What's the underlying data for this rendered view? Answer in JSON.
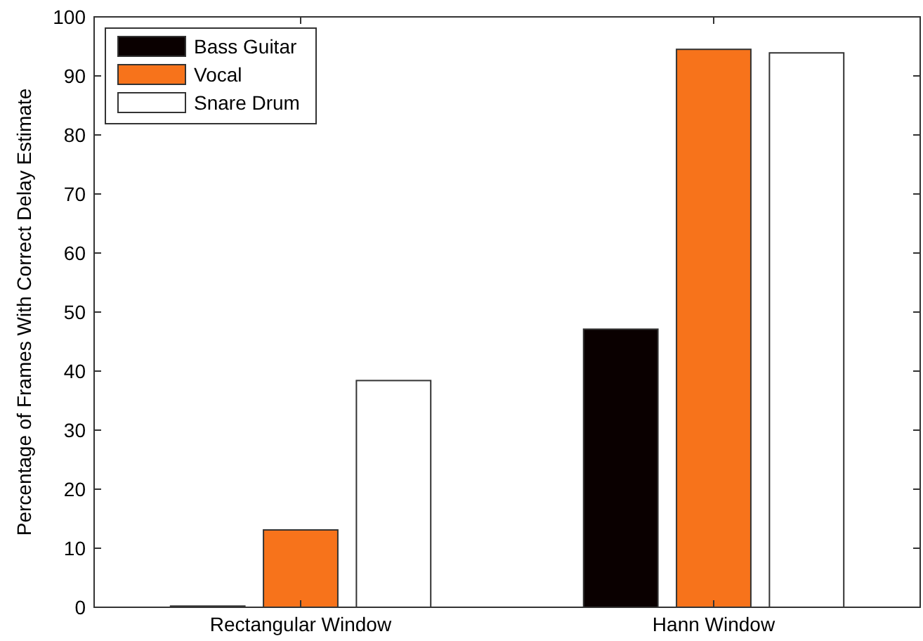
{
  "chart_data": {
    "type": "bar",
    "ylabel": "Percentage of Frames With Correct Delay Estimate",
    "categories": [
      "Rectangular Window",
      "Hann Window"
    ],
    "series": [
      {
        "name": "Bass Guitar",
        "color": "#0a0000",
        "values": [
          0.2,
          47.1
        ]
      },
      {
        "name": "Vocal",
        "color": "#f7731b",
        "values": [
          13.1,
          94.5
        ]
      },
      {
        "name": "Snare Drum",
        "color": "#ffffff",
        "values": [
          38.4,
          93.9
        ]
      }
    ],
    "ylim": [
      0,
      100
    ],
    "yticks": [
      0,
      10,
      20,
      30,
      40,
      50,
      60,
      70,
      80,
      90,
      100
    ],
    "grid": false,
    "legend": "top left"
  }
}
